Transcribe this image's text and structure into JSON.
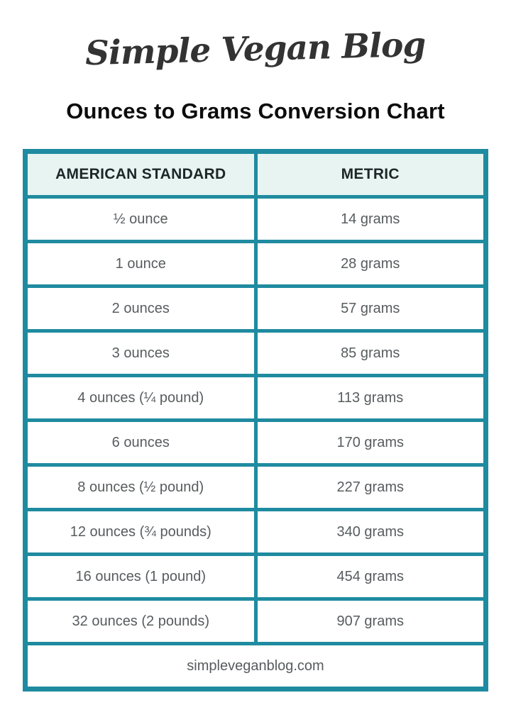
{
  "logo": {
    "text": "Simple Vegan Blog"
  },
  "title": "Ounces to Grams Conversion Chart",
  "colors": {
    "teal_border": "#1f8ba0",
    "header_bg": "#e8f4f1",
    "title_text": "#0c0c0c",
    "header_text": "#1d2628",
    "body_text": "#575c5e"
  },
  "chart_data": {
    "type": "table",
    "title": "Ounces to Grams Conversion Chart",
    "columns": [
      "AMERICAN STANDARD",
      "METRIC"
    ],
    "rows": [
      [
        "½ ounce",
        "14 grams"
      ],
      [
        "1 ounce",
        "28 grams"
      ],
      [
        "2 ounces",
        "57 grams"
      ],
      [
        "3 ounces",
        "85 grams"
      ],
      [
        "4 ounces (¼ pound)",
        "113 grams"
      ],
      [
        "6 ounces",
        "170 grams"
      ],
      [
        "8 ounces (½ pound)",
        "227 grams"
      ],
      [
        "12 ounces (¾ pounds)",
        "340 grams"
      ],
      [
        "16 ounces (1 pound)",
        "454 grams"
      ],
      [
        "32 ounces (2 pounds)",
        "907 grams"
      ]
    ],
    "footer": "simpleveganblog.com",
    "layout": {
      "grid_color": "#1f8ba0",
      "header_fill": "#e8f4f1",
      "row_fill": "#ffffff"
    }
  }
}
